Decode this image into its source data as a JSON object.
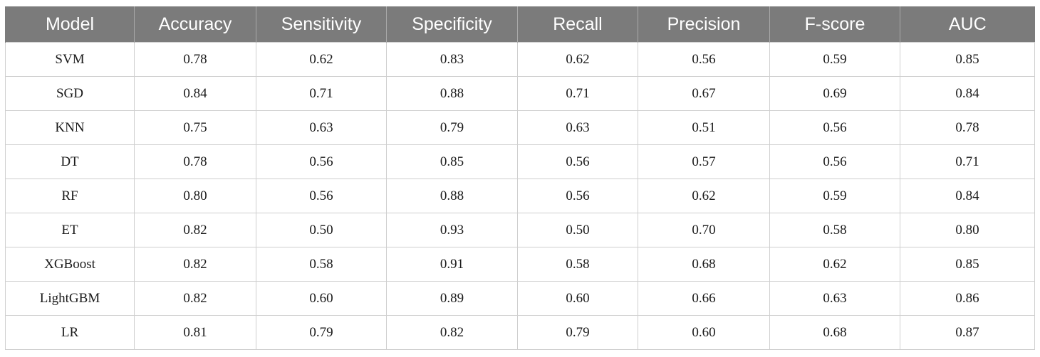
{
  "table": {
    "headers": [
      "Model",
      "Accuracy",
      "Sensitivity",
      "Specificity",
      "Recall",
      "Precision",
      "F-score",
      "AUC"
    ],
    "rows": [
      [
        "SVM",
        "0.78",
        "0.62",
        "0.83",
        "0.62",
        "0.56",
        "0.59",
        "0.85"
      ],
      [
        "SGD",
        "0.84",
        "0.71",
        "0.88",
        "0.71",
        "0.67",
        "0.69",
        "0.84"
      ],
      [
        "KNN",
        "0.75",
        "0.63",
        "0.79",
        "0.63",
        "0.51",
        "0.56",
        "0.78"
      ],
      [
        "DT",
        "0.78",
        "0.56",
        "0.85",
        "0.56",
        "0.57",
        "0.56",
        "0.71"
      ],
      [
        "RF",
        "0.80",
        "0.56",
        "0.88",
        "0.56",
        "0.62",
        "0.59",
        "0.84"
      ],
      [
        "ET",
        "0.82",
        "0.50",
        "0.93",
        "0.50",
        "0.70",
        "0.58",
        "0.80"
      ],
      [
        "XGBoost",
        "0.82",
        "0.58",
        "0.91",
        "0.58",
        "0.68",
        "0.62",
        "0.85"
      ],
      [
        "LightGBM",
        "0.82",
        "0.60",
        "0.89",
        "0.60",
        "0.66",
        "0.63",
        "0.86"
      ],
      [
        "LR",
        "0.81",
        "0.79",
        "0.82",
        "0.79",
        "0.60",
        "0.68",
        "0.87"
      ]
    ]
  },
  "colors": {
    "header_bg": "#7b7b7b",
    "header_text": "#ffffff",
    "grid_line": "#cfcfcf"
  }
}
